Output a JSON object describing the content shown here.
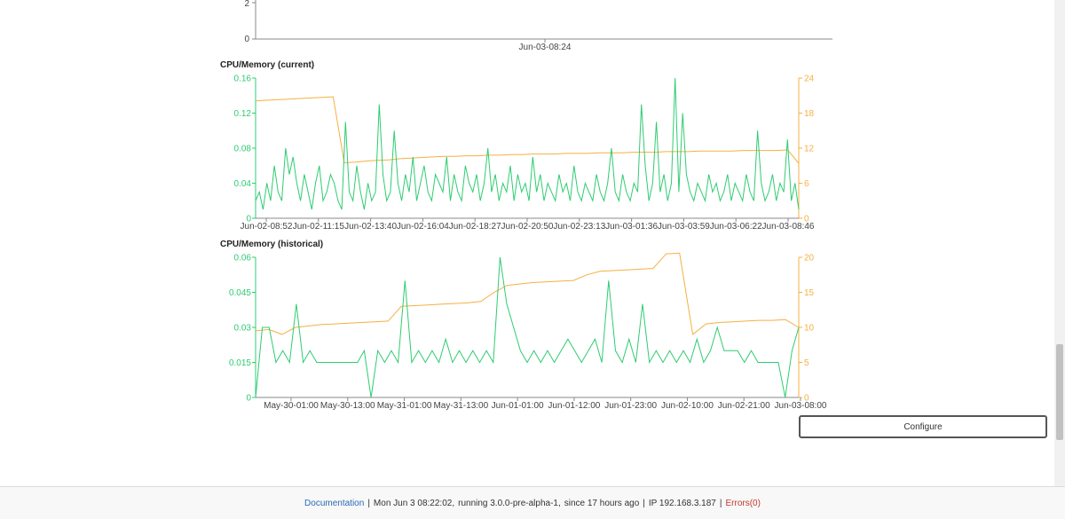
{
  "top_chart": {
    "y_ticks": [
      "2",
      "0"
    ],
    "x_tick": "Jun-03-08:24"
  },
  "current_chart": {
    "title": "CPU/Memory (current)",
    "cpu_color": "#2ecc71",
    "mem_color": "#f5b041",
    "cpu_ticks": [
      "0.16",
      "0.12",
      "0.08",
      "0.04",
      "0"
    ],
    "mem_ticks": [
      "24",
      "18",
      "12",
      "6",
      "0"
    ],
    "x_ticks": [
      "Jun-02-08:52",
      "Jun-02-11:15",
      "Jun-02-13:40",
      "Jun-02-16:04",
      "Jun-02-18:27",
      "Jun-02-20:50",
      "Jun-02-23:13",
      "Jun-03-01:36",
      "Jun-03-03:59",
      "Jun-03-06:22",
      "Jun-03-08:46"
    ]
  },
  "historical_chart": {
    "title": "CPU/Memory (historical)",
    "cpu_color": "#2ecc71",
    "mem_color": "#f5b041",
    "cpu_ticks": [
      "0.06",
      "0.045",
      "0.03",
      "0.015",
      "0"
    ],
    "mem_ticks": [
      "20",
      "15",
      "10",
      "5",
      "0"
    ],
    "x_ticks": [
      "May-30-01:00",
      "May-30-13:00",
      "May-31-01:00",
      "May-31-13:00",
      "Jun-01-01:00",
      "Jun-01-12:00",
      "Jun-01-23:00",
      "Jun-02-10:00",
      "Jun-02-21:00",
      "Jun-03-08:00"
    ]
  },
  "chart_data": [
    {
      "type": "line",
      "title": "CPU/Memory (current)",
      "ylim": [
        0,
        0.16
      ],
      "y2lim": [
        0,
        24
      ],
      "series": [
        {
          "values": [
            0.02,
            0.03,
            0.01,
            0.04,
            0.02,
            0.06,
            0.03,
            0.02,
            0.08,
            0.05,
            0.07,
            0.04,
            0.02,
            0.05,
            0.03,
            0.01,
            0.04,
            0.06,
            0.02,
            0.03,
            0.05,
            0.04,
            0.02,
            0.01,
            0.11,
            0.03,
            0.02,
            0.06,
            0.03,
            0.01,
            0.04,
            0.02,
            0.03,
            0.13,
            0.05,
            0.02,
            0.03,
            0.1,
            0.04,
            0.02,
            0.05,
            0.03,
            0.07,
            0.02,
            0.04,
            0.06,
            0.03,
            0.02,
            0.05,
            0.04,
            0.03,
            0.07,
            0.02,
            0.05,
            0.03,
            0.02,
            0.06,
            0.04,
            0.03,
            0.05,
            0.02,
            0.04,
            0.08,
            0.03,
            0.05,
            0.02,
            0.04,
            0.03,
            0.06,
            0.02,
            0.05,
            0.03,
            0.04,
            0.02,
            0.07,
            0.03,
            0.05,
            0.02,
            0.04,
            0.03,
            0.02,
            0.05,
            0.03,
            0.04,
            0.02,
            0.06,
            0.03,
            0.02,
            0.04,
            0.03,
            0.02,
            0.05,
            0.03,
            0.02,
            0.04,
            0.08,
            0.03,
            0.02,
            0.05,
            0.03,
            0.02,
            0.04,
            0.03,
            0.13,
            0.06,
            0.02,
            0.04,
            0.11,
            0.03,
            0.05,
            0.02,
            0.04,
            0.16,
            0.03,
            0.12,
            0.05,
            0.03,
            0.02,
            0.04,
            0.03,
            0.02,
            0.05,
            0.03,
            0.04,
            0.02,
            0.03,
            0.05,
            0.02,
            0.04,
            0.03,
            0.02,
            0.05,
            0.03,
            0.02,
            0.1,
            0.04,
            0.02,
            0.03,
            0.05,
            0.02,
            0.04,
            0.03,
            0.09,
            0.02,
            0.04,
            0.01
          ]
        },
        {
          "values": [
            20.1,
            20.2,
            20.3,
            20.4,
            20.5,
            20.6,
            20.7,
            20.8,
            9.5,
            9.6,
            9.8,
            9.9,
            10.0,
            10.2,
            10.3,
            10.4,
            10.5,
            10.6,
            10.6,
            10.7,
            10.7,
            10.8,
            10.8,
            10.9,
            10.9,
            11.0,
            11.0,
            11.0,
            11.1,
            11.1,
            11.1,
            11.2,
            11.2,
            11.2,
            11.3,
            11.3,
            11.3,
            11.4,
            11.4,
            11.4,
            11.5,
            11.5,
            11.5,
            11.5,
            11.6,
            11.6,
            11.6,
            11.6,
            11.7,
            9.4
          ]
        }
      ]
    },
    {
      "type": "line",
      "title": "CPU/Memory (historical)",
      "ylim": [
        0,
        0.06
      ],
      "y2lim": [
        0,
        20
      ],
      "series": [
        {
          "values": [
            0,
            0.03,
            0.03,
            0.015,
            0.02,
            0.015,
            0.04,
            0.015,
            0.02,
            0.015,
            0.015,
            0.015,
            0.015,
            0.015,
            0.015,
            0.015,
            0.02,
            0.0,
            0.02,
            0.015,
            0.02,
            0.015,
            0.05,
            0.015,
            0.02,
            0.015,
            0.02,
            0.015,
            0.025,
            0.015,
            0.02,
            0.015,
            0.02,
            0.015,
            0.02,
            0.015,
            0.06,
            0.04,
            0.03,
            0.02,
            0.015,
            0.02,
            0.015,
            0.02,
            0.015,
            0.02,
            0.025,
            0.02,
            0.015,
            0.02,
            0.025,
            0.015,
            0.05,
            0.02,
            0.015,
            0.025,
            0.015,
            0.04,
            0.015,
            0.02,
            0.015,
            0.02,
            0.015,
            0.02,
            0.015,
            0.025,
            0.015,
            0.02,
            0.03,
            0.02,
            0.02,
            0.02,
            0.015,
            0.02,
            0.015,
            0.015,
            0.015,
            0.015,
            0.0,
            0.02,
            0.03
          ]
        },
        {
          "values": [
            9.5,
            9.7,
            9.0,
            10.0,
            10.2,
            10.4,
            10.5,
            10.6,
            10.7,
            10.8,
            10.9,
            13.0,
            13.1,
            13.2,
            13.3,
            13.4,
            13.5,
            13.7,
            15.0,
            16.0,
            16.2,
            16.4,
            16.5,
            16.6,
            16.7,
            17.5,
            18.0,
            18.1,
            18.2,
            18.3,
            18.4,
            20.5,
            20.6,
            9.0,
            10.5,
            10.7,
            10.8,
            10.9,
            11.0,
            11.0,
            11.1,
            10.0
          ]
        }
      ]
    }
  ],
  "configure_button": "Configure",
  "footer": {
    "documentation": "Documentation",
    "sep": "|",
    "datetime": "Mon Jun 3 08:22:02,",
    "running": "running 3.0.0-pre-alpha-1,",
    "since": "since 17 hours ago",
    "ip": "IP 192.168.3.187",
    "errors": "Errors(0)"
  }
}
